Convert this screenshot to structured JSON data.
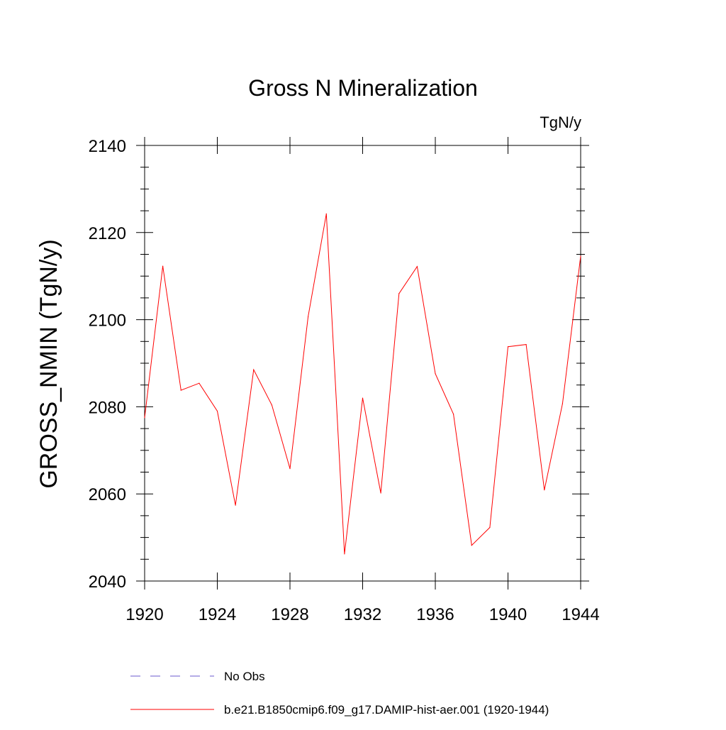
{
  "chart_data": {
    "type": "line",
    "title": "Gross N Mineralization",
    "units_label": "TgN/y",
    "xlabel": "",
    "ylabel": "GROSS_NMIN  (TgN/y)",
    "xlim": [
      1920,
      1944
    ],
    "ylim": [
      2040,
      2140
    ],
    "x_ticks": [
      "1920",
      "1924",
      "1928",
      "1932",
      "1936",
      "1940",
      "1944"
    ],
    "y_ticks": [
      "2040",
      "2060",
      "2080",
      "2100",
      "2120",
      "2140"
    ],
    "grid": false,
    "legend_position": "bottom",
    "series": [
      {
        "name": "b.e21.B1850cmip6.f09_g17.DAMIP-hist-aer.001 (1920-1944)",
        "color": "#ff0000",
        "x": [
          1920,
          1921,
          1922,
          1923,
          1924,
          1925,
          1926,
          1927,
          1928,
          1929,
          1930,
          1931,
          1932,
          1933,
          1934,
          1935,
          1936,
          1937,
          1938,
          1939,
          1940,
          1941,
          1942,
          1943,
          1944
        ],
        "values": [
          2077.5,
          2112.3,
          2083.8,
          2085.4,
          2079.0,
          2057.4,
          2088.5,
          2080.4,
          2065.8,
          2100.7,
          2124.3,
          2046.2,
          2082.0,
          2060.2,
          2106.0,
          2112.2,
          2087.6,
          2078.3,
          2048.2,
          2052.3,
          2093.8,
          2094.3,
          2060.9,
          2080.7,
          2114.6
        ]
      }
    ],
    "legend": [
      {
        "label": "No Obs",
        "color": "#6a5acd",
        "style": "dashed"
      },
      {
        "label": "b.e21.B1850cmip6.f09_g17.DAMIP-hist-aer.001 (1920-1944)",
        "color": "#ff0000",
        "style": "solid"
      }
    ]
  }
}
